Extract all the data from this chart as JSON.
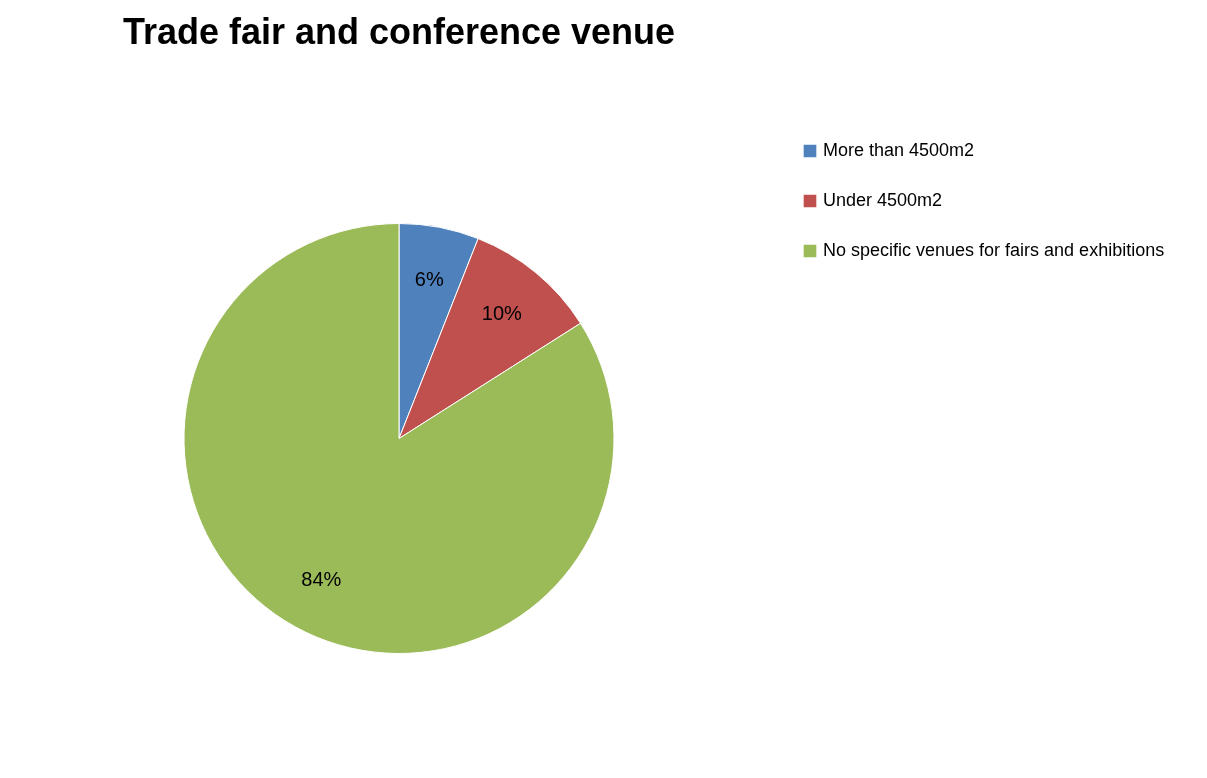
{
  "chart_data": {
    "type": "pie",
    "title": "Trade fair and conference venue",
    "categories": [
      "More than 4500m2",
      "Under 4500m2",
      "No specific venues for fairs and exhibitions"
    ],
    "values": [
      6,
      10,
      84
    ],
    "colors": [
      "#4f81bd",
      "#c0504d",
      "#9bbb59"
    ],
    "value_labels": [
      "6%",
      "10%",
      "84%"
    ],
    "legend": "right"
  }
}
